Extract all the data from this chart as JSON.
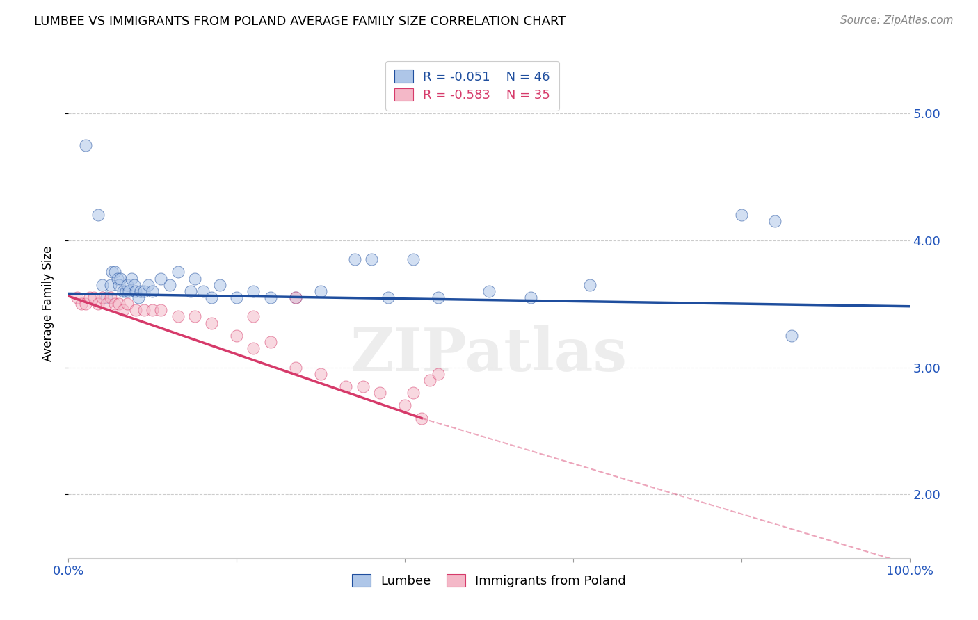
{
  "title": "LUMBEE VS IMMIGRANTS FROM POLAND AVERAGE FAMILY SIZE CORRELATION CHART",
  "source": "Source: ZipAtlas.com",
  "ylabel": "Average Family Size",
  "legend_labels": [
    "Lumbee",
    "Immigrants from Poland"
  ],
  "legend_r": [
    "R = -0.051",
    "R = -0.583"
  ],
  "legend_n": [
    "N = 46",
    "N = 35"
  ],
  "xlim": [
    0.0,
    100.0
  ],
  "ylim": [
    1.5,
    5.5
  ],
  "yticks": [
    2.0,
    3.0,
    4.0,
    5.0
  ],
  "blue_color": "#aec6e8",
  "pink_color": "#f4b8c8",
  "blue_line_color": "#1f4e9e",
  "pink_line_color": "#d63a6a",
  "background_color": "#ffffff",
  "watermark": "ZIPatlas",
  "lumbee_x": [
    2.0,
    3.5,
    4.0,
    4.5,
    5.0,
    5.2,
    5.5,
    5.8,
    6.0,
    6.2,
    6.5,
    6.8,
    7.0,
    7.2,
    7.5,
    7.8,
    8.0,
    8.3,
    8.6,
    9.0,
    9.5,
    10.0,
    11.0,
    12.0,
    13.0,
    14.5,
    15.0,
    16.0,
    17.0,
    18.0,
    20.0,
    22.0,
    24.0,
    27.0,
    30.0,
    34.0,
    36.0,
    38.0,
    41.0,
    44.0,
    50.0,
    55.0,
    62.0,
    80.0,
    84.0,
    86.0
  ],
  "lumbee_y": [
    4.75,
    4.2,
    3.65,
    3.55,
    3.65,
    3.75,
    3.75,
    3.7,
    3.65,
    3.7,
    3.6,
    3.6,
    3.65,
    3.6,
    3.7,
    3.65,
    3.6,
    3.55,
    3.6,
    3.6,
    3.65,
    3.6,
    3.7,
    3.65,
    3.75,
    3.6,
    3.7,
    3.6,
    3.55,
    3.65,
    3.55,
    3.6,
    3.55,
    3.55,
    3.6,
    3.85,
    3.85,
    3.55,
    3.85,
    3.55,
    3.6,
    3.55,
    3.65,
    4.2,
    4.15,
    3.25
  ],
  "poland_x": [
    1.0,
    1.5,
    2.0,
    2.5,
    3.0,
    3.5,
    4.0,
    4.5,
    5.0,
    5.5,
    6.0,
    6.5,
    7.0,
    8.0,
    9.0,
    10.0,
    11.0,
    13.0,
    15.0,
    17.0,
    20.0,
    22.0,
    24.0,
    27.0,
    30.0,
    33.0,
    35.0,
    37.0,
    40.0,
    41.0,
    42.0,
    43.0,
    44.0,
    22.0,
    27.0
  ],
  "poland_y": [
    3.55,
    3.5,
    3.5,
    3.55,
    3.55,
    3.5,
    3.55,
    3.5,
    3.55,
    3.5,
    3.5,
    3.45,
    3.5,
    3.45,
    3.45,
    3.45,
    3.45,
    3.4,
    3.4,
    3.35,
    3.25,
    3.15,
    3.2,
    3.0,
    2.95,
    2.85,
    2.85,
    2.8,
    2.7,
    2.8,
    2.6,
    2.9,
    2.95,
    3.4,
    3.55
  ],
  "blue_trend": [
    0.0,
    100.0,
    3.58,
    3.48
  ],
  "pink_trend_solid": [
    0.0,
    42.0,
    3.56,
    2.6
  ],
  "pink_trend_dash": [
    42.0,
    100.0,
    2.6,
    1.45
  ]
}
